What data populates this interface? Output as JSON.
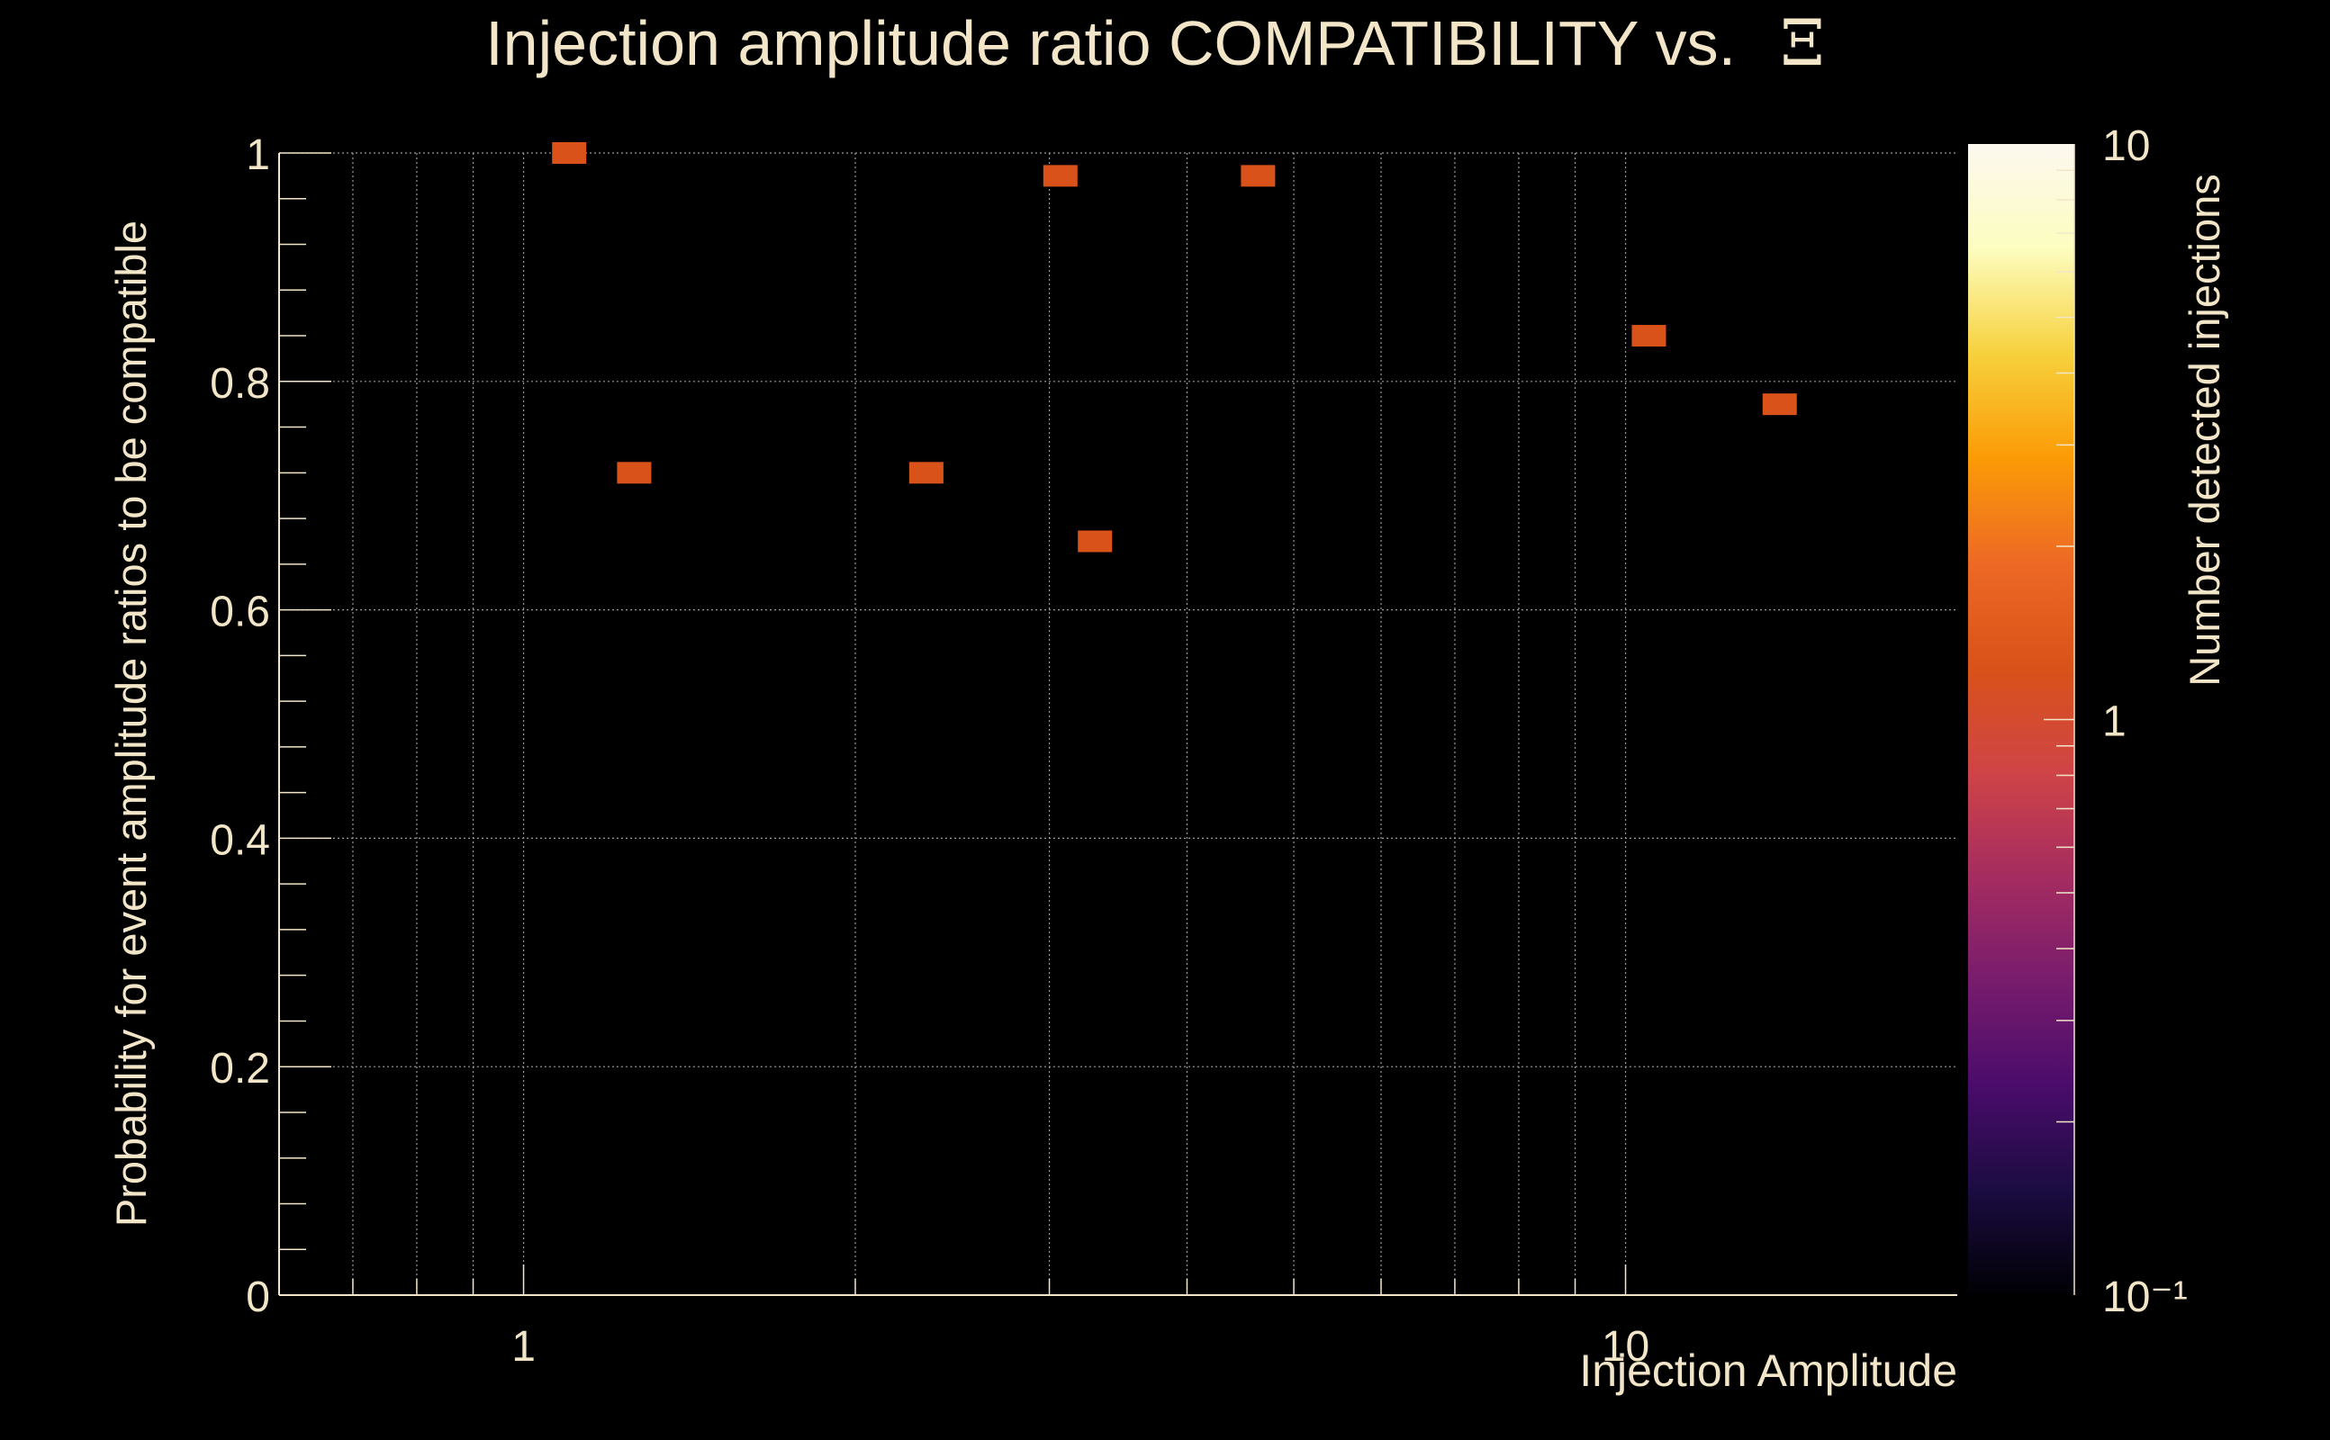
{
  "chart_data": {
    "type": "heatmap",
    "title": "Injection amplitude ratio COMPATIBILITY vs.",
    "title_symbol": "Ξ",
    "xlabel": "Injection Amplitude",
    "ylabel": "Probability for event amplitude ratios to be compatible",
    "zlabel": "Number detected injections",
    "x_scale": "log",
    "xlim": [
      0.6,
      20
    ],
    "ylim": [
      0,
      1
    ],
    "z_scale": "log",
    "zlim": [
      0.1,
      10
    ],
    "x_tick_labels": [
      {
        "value": 1,
        "label": "1"
      },
      {
        "value": 10,
        "label": "10"
      }
    ],
    "y_tick_labels": [
      {
        "value": 0,
        "label": "0"
      },
      {
        "value": 0.2,
        "label": "0.2"
      },
      {
        "value": 0.4,
        "label": "0.4"
      },
      {
        "value": 0.6,
        "label": "0.6"
      },
      {
        "value": 0.8,
        "label": "0.8"
      },
      {
        "value": 1,
        "label": "1"
      }
    ],
    "z_tick_labels": [
      {
        "value": 10,
        "label": "10"
      },
      {
        "value": 1,
        "label": "1"
      },
      {
        "value": 0.1,
        "label": "10⁻¹"
      }
    ],
    "grid": true,
    "colormap": [
      "#000004",
      "#1b0c41",
      "#4a0c6b",
      "#781c6d",
      "#a52c60",
      "#cf4446",
      "#d95219",
      "#ed6925",
      "#fb9b06",
      "#f7d13d",
      "#fcfdbf",
      "#fdf8f0"
    ],
    "cell_color": "#d95219",
    "text_color": "#f3e6c8",
    "background_color": "#000000",
    "points": [
      {
        "x": 1.1,
        "y": 1.0,
        "count": 1
      },
      {
        "x": 1.26,
        "y": 0.72,
        "count": 1
      },
      {
        "x": 2.32,
        "y": 0.72,
        "count": 1
      },
      {
        "x": 3.07,
        "y": 0.98,
        "count": 1
      },
      {
        "x": 3.3,
        "y": 0.66,
        "count": 1
      },
      {
        "x": 4.64,
        "y": 0.98,
        "count": 1
      },
      {
        "x": 10.5,
        "y": 0.84,
        "count": 1
      },
      {
        "x": 13.8,
        "y": 0.78,
        "count": 1
      }
    ]
  }
}
